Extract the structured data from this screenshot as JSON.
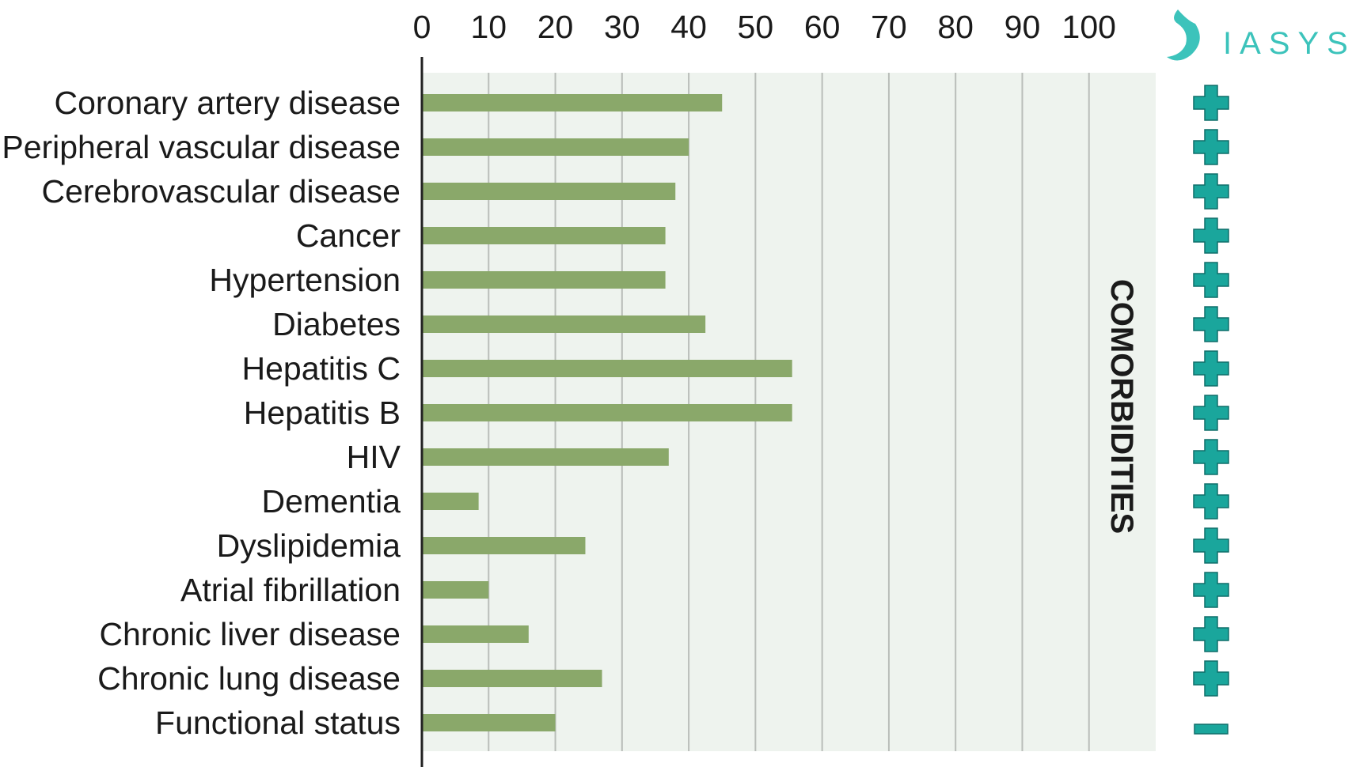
{
  "brand": {
    "text": "IASYS",
    "color": "#3cc3bb"
  },
  "colors": {
    "bar": "#8aa86a",
    "plot_background": "#eef3ee",
    "gridline": "#b9bdb9",
    "axis": "#222222",
    "sign": "#1aa69c"
  },
  "side_title": "COMORBIDITIES",
  "chart_data": {
    "type": "bar",
    "orientation": "horizontal",
    "x_axis_position": "top",
    "xlim": [
      0,
      110
    ],
    "xticks": [
      "0",
      "10",
      "20",
      "30",
      "40",
      "50",
      "60",
      "70",
      "80",
      "90",
      "100"
    ],
    "grid": true,
    "categories": [
      "Coronary artery disease",
      "Peripheral vascular disease",
      "Cerebrovascular disease",
      "Cancer",
      "Hypertension",
      "Diabetes",
      "Hepatitis C",
      "Hepatitis B",
      "HIV",
      "Dementia",
      "Dyslipidemia",
      "Atrial fibrillation",
      "Chronic liver disease",
      "Chronic lung disease",
      "Functional status"
    ],
    "values": [
      45,
      40,
      38,
      36.5,
      36.5,
      42.5,
      55.5,
      55.5,
      37,
      8.5,
      24.5,
      10,
      16,
      27,
      20
    ],
    "signs": [
      "plus",
      "plus",
      "plus",
      "plus",
      "plus",
      "plus",
      "plus",
      "plus",
      "plus",
      "plus",
      "plus",
      "plus",
      "plus",
      "plus",
      "minus"
    ]
  }
}
